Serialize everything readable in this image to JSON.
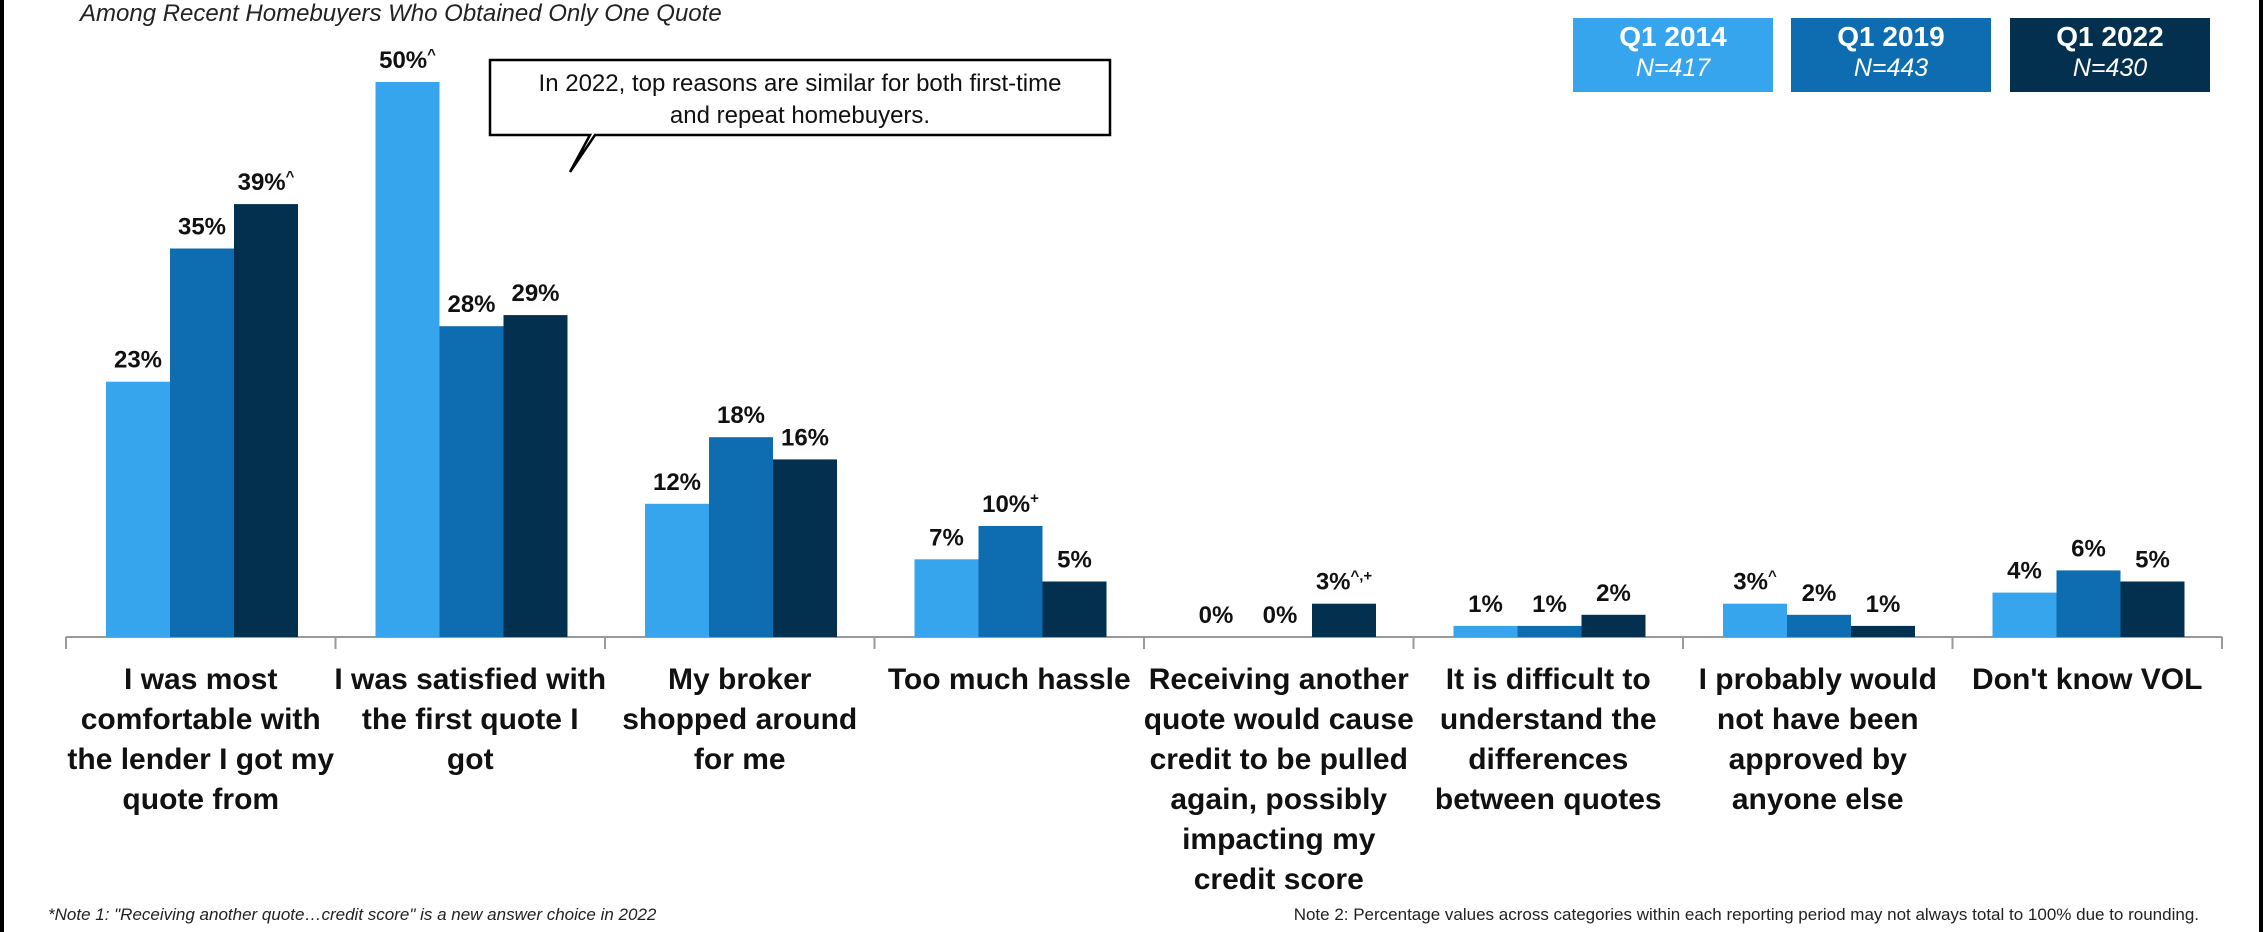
{
  "subtitle": "Among Recent Homebuyers Who Obtained Only One Quote",
  "callout": {
    "lines": [
      "In 2022, top reasons are similar for both first-time",
      "and repeat homebuyers."
    ]
  },
  "legend": [
    {
      "period": "Q1 2014",
      "n": "N=417",
      "color": "#37a4ee"
    },
    {
      "period": "Q1 2019",
      "n": "N=443",
      "color": "#0e6db1"
    },
    {
      "period": "Q1 2022",
      "n": "N=430",
      "color": "#04304f"
    }
  ],
  "notes": {
    "note1": "*Note 1: \"Receiving another quote…credit score\" is a new answer choice in 2022",
    "note2": "Note 2: Percentage values  across categories within each reporting period may not always total to 100% due to rounding."
  },
  "chart_data": {
    "type": "bar",
    "ylim": [
      0,
      50
    ],
    "categories": [
      [
        "I was most",
        "comfortable with",
        "the lender I got my",
        "quote from"
      ],
      [
        "I was satisfied with",
        "the first quote I",
        "got"
      ],
      [
        "My broker",
        "shopped around",
        "for me"
      ],
      [
        "Too much hassle"
      ],
      [
        "Receiving another",
        "quote would cause",
        "credit to be pulled",
        "again, possibly",
        "impacting my",
        "credit score"
      ],
      [
        "It is difficult to",
        "understand the",
        "differences",
        "between quotes"
      ],
      [
        "I probably would",
        "not have been",
        "approved by",
        "anyone else"
      ],
      [
        "Don't know VOL"
      ]
    ],
    "series": [
      {
        "name": "Q1 2014",
        "color": "#37a4ee",
        "values": [
          23,
          50,
          12,
          7,
          0,
          1,
          3,
          4
        ],
        "labels": [
          "23%",
          "50%",
          "12%",
          "7%",
          "0%",
          "1%",
          "3%",
          "4%"
        ],
        "marks": [
          "",
          "^",
          "",
          "",
          "",
          "",
          "^",
          ""
        ]
      },
      {
        "name": "Q1 2019",
        "color": "#0e6db1",
        "values": [
          35,
          28,
          18,
          10,
          0,
          1,
          2,
          6
        ],
        "labels": [
          "35%",
          "28%",
          "18%",
          "10%",
          "0%",
          "1%",
          "2%",
          "6%"
        ],
        "marks": [
          "",
          "",
          "",
          "+",
          "",
          "",
          "",
          ""
        ]
      },
      {
        "name": "Q1 2022",
        "color": "#04304f",
        "values": [
          39,
          29,
          16,
          5,
          3,
          2,
          1,
          5
        ],
        "labels": [
          "39%",
          "29%",
          "16%",
          "5%",
          "3%",
          "2%",
          "1%",
          "5%"
        ],
        "marks": [
          "^",
          "",
          "",
          "",
          "^,+",
          "",
          "",
          ""
        ]
      }
    ]
  }
}
